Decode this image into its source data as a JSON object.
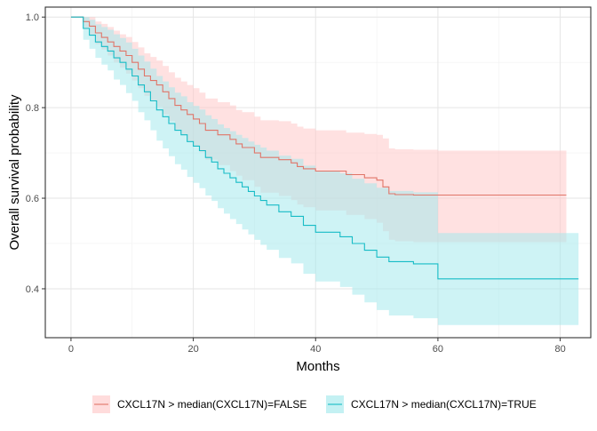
{
  "chart_data": {
    "type": "line",
    "subtype": "kaplan-meier-step",
    "xlabel": "Months",
    "ylabel": "Overall survival probability",
    "xlim": [
      -4.2,
      85
    ],
    "ylim": [
      0.292,
      1.022
    ],
    "x_ticks": [
      0,
      20,
      40,
      60,
      80
    ],
    "x_tick_labels": [
      "0",
      "20",
      "40",
      "60",
      "80"
    ],
    "y_ticks": [
      0.4,
      0.6,
      0.8,
      1.0
    ],
    "y_tick_labels": [
      "0.4",
      "0.6",
      "0.8",
      "1.0"
    ],
    "grid": true,
    "legend_position": "bottom",
    "series": [
      {
        "name": "CXCL17N > median(CXCL17N)=FALSE",
        "line_color": "#E07568",
        "band_color": "#FFC9C9",
        "x": [
          0,
          2,
          3,
          4,
          5,
          6,
          7,
          8,
          9,
          10,
          11,
          12,
          13,
          14,
          15,
          16,
          17,
          18,
          19,
          20,
          21,
          22,
          24,
          26,
          27,
          28,
          30,
          31,
          34,
          36,
          37,
          38,
          40,
          45,
          48,
          50,
          51,
          52,
          53,
          56,
          60,
          81
        ],
        "y": [
          1.0,
          0.99,
          0.98,
          0.965,
          0.955,
          0.945,
          0.935,
          0.925,
          0.915,
          0.9,
          0.885,
          0.87,
          0.86,
          0.85,
          0.835,
          0.82,
          0.805,
          0.795,
          0.785,
          0.775,
          0.765,
          0.75,
          0.74,
          0.73,
          0.72,
          0.712,
          0.7,
          0.69,
          0.685,
          0.678,
          0.67,
          0.665,
          0.66,
          0.652,
          0.645,
          0.64,
          0.625,
          0.61,
          0.608,
          0.607,
          0.607,
          0.607
        ],
        "lower": [
          1.0,
          0.975,
          0.96,
          0.94,
          0.928,
          0.915,
          0.9,
          0.888,
          0.875,
          0.86,
          0.843,
          0.826,
          0.814,
          0.802,
          0.785,
          0.77,
          0.752,
          0.74,
          0.727,
          0.715,
          0.702,
          0.685,
          0.673,
          0.66,
          0.65,
          0.64,
          0.625,
          0.612,
          0.605,
          0.596,
          0.586,
          0.58,
          0.573,
          0.563,
          0.554,
          0.546,
          0.527,
          0.508,
          0.505,
          0.503,
          0.503,
          0.503
        ],
        "upper": [
          1.0,
          1.0,
          1.0,
          0.99,
          0.985,
          0.978,
          0.97,
          0.962,
          0.956,
          0.945,
          0.933,
          0.92,
          0.912,
          0.904,
          0.892,
          0.878,
          0.866,
          0.858,
          0.85,
          0.843,
          0.833,
          0.82,
          0.812,
          0.805,
          0.795,
          0.79,
          0.78,
          0.772,
          0.77,
          0.765,
          0.758,
          0.754,
          0.75,
          0.745,
          0.742,
          0.74,
          0.732,
          0.71,
          0.708,
          0.707,
          0.705,
          0.705
        ]
      },
      {
        "name": "CXCL17N > median(CXCL17N)=TRUE",
        "line_color": "#17BCC6",
        "band_color": "#A5E9EC",
        "x": [
          0,
          2,
          3,
          4,
          5,
          6,
          7,
          8,
          9,
          10,
          11,
          12,
          13,
          14,
          15,
          16,
          17,
          18,
          19,
          20,
          21,
          22,
          23,
          24,
          25,
          26,
          27,
          28,
          29,
          30,
          31,
          32,
          34,
          36,
          38,
          40,
          44,
          46,
          48,
          50,
          52,
          56,
          60,
          83
        ],
        "y": [
          1.0,
          0.975,
          0.96,
          0.945,
          0.935,
          0.925,
          0.91,
          0.9,
          0.885,
          0.87,
          0.85,
          0.835,
          0.815,
          0.795,
          0.78,
          0.765,
          0.75,
          0.74,
          0.725,
          0.715,
          0.705,
          0.69,
          0.68,
          0.665,
          0.655,
          0.645,
          0.635,
          0.625,
          0.615,
          0.605,
          0.595,
          0.585,
          0.57,
          0.56,
          0.54,
          0.525,
          0.515,
          0.5,
          0.485,
          0.47,
          0.46,
          0.455,
          0.422,
          0.422
        ],
        "lower": [
          1.0,
          0.95,
          0.93,
          0.91,
          0.895,
          0.882,
          0.862,
          0.85,
          0.832,
          0.815,
          0.79,
          0.772,
          0.75,
          0.727,
          0.71,
          0.693,
          0.675,
          0.663,
          0.647,
          0.634,
          0.622,
          0.606,
          0.594,
          0.578,
          0.566,
          0.554,
          0.543,
          0.531,
          0.52,
          0.508,
          0.497,
          0.486,
          0.468,
          0.456,
          0.433,
          0.416,
          0.404,
          0.387,
          0.37,
          0.353,
          0.341,
          0.335,
          0.32,
          0.32
        ],
        "upper": [
          1.0,
          1.0,
          0.994,
          0.984,
          0.978,
          0.972,
          0.962,
          0.954,
          0.944,
          0.93,
          0.915,
          0.902,
          0.886,
          0.87,
          0.858,
          0.845,
          0.833,
          0.825,
          0.812,
          0.804,
          0.796,
          0.783,
          0.775,
          0.763,
          0.755,
          0.748,
          0.74,
          0.733,
          0.725,
          0.718,
          0.712,
          0.705,
          0.694,
          0.687,
          0.672,
          0.66,
          0.655,
          0.643,
          0.633,
          0.623,
          0.616,
          0.613,
          0.523,
          0.523
        ]
      }
    ]
  }
}
